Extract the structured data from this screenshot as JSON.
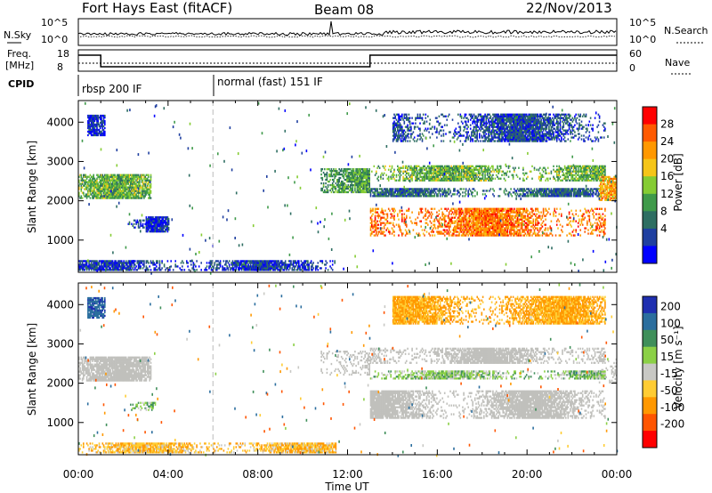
{
  "header": {
    "station": "Fort Hays East (fitACF)",
    "beam": "Beam 08",
    "date": "22/Nov/2013"
  },
  "strip_labels": {
    "nsky": "N.Sky",
    "nsearch": "N.Search",
    "freq_line1": "Freq.",
    "freq_line2": "[MHz]",
    "nave": "Nave",
    "cpid": "CPID"
  },
  "noise_ticks": {
    "top": "10^5",
    "bottom": "10^0"
  },
  "freq_ticks": [
    "18",
    "8"
  ],
  "nave_ticks": [
    "60",
    "0"
  ],
  "cpid_modes": [
    {
      "label": "rbsp 200 IF",
      "start_hour": 0
    },
    {
      "label": "normal (fast) 151 IF",
      "start_hour": 6
    }
  ],
  "colors": {
    "power": [
      "#0000ff",
      "#1f3fa0",
      "#2e6e62",
      "#3f9a4a",
      "#85cc33",
      "#f5c518",
      "#ff9800",
      "#ff5a00",
      "#ff0000"
    ],
    "velocity": [
      "#1f2fb0",
      "#2b6e9e",
      "#3f8f5a",
      "#8bd046",
      "#c8c8c4",
      "#ffcc33",
      "#ff9800",
      "#ff5500",
      "#ff0000"
    ],
    "ground_scatter": "#c0c0bc"
  },
  "chart_data": [
    {
      "type": "heatmap",
      "panel": "power",
      "xlabel": "Time UT",
      "ylabel": "Slant Range [km]",
      "x_ticks": [
        "00:00",
        "04:00",
        "08:00",
        "12:00",
        "16:00",
        "20:00",
        "00:00"
      ],
      "y_ticks": [
        1000,
        2000,
        3000,
        4000
      ],
      "xlim": [
        0,
        24
      ],
      "ylim": [
        180,
        4550
      ],
      "colorbar": {
        "label": "Power [dB]",
        "ticks": [
          4,
          8,
          12,
          16,
          20,
          24,
          28
        ],
        "range": [
          0,
          32
        ]
      },
      "regions": [
        {
          "t": [
            0.0,
            3.2
          ],
          "r": [
            2050,
            2650
          ],
          "level": 14
        },
        {
          "t": [
            0.4,
            1.2
          ],
          "r": [
            3650,
            4150
          ],
          "level": 4
        },
        {
          "t": [
            2.2,
            3.4
          ],
          "r": [
            1300,
            1500
          ],
          "level": 6
        },
        {
          "t": [
            3.0,
            4.0
          ],
          "r": [
            1200,
            1600
          ],
          "level": 4
        },
        {
          "t": [
            0.0,
            11.5
          ],
          "r": [
            220,
            480
          ],
          "level": 5
        },
        {
          "t": [
            10.8,
            13.0
          ],
          "r": [
            2200,
            2800
          ],
          "level": 12
        },
        {
          "t": [
            13.0,
            23.5
          ],
          "r": [
            1100,
            1800
          ],
          "level": 25
        },
        {
          "t": [
            13.0,
            23.5
          ],
          "r": [
            2500,
            2900
          ],
          "level": 14
        },
        {
          "t": [
            13.0,
            23.5
          ],
          "r": [
            2100,
            2300
          ],
          "level": 8
        },
        {
          "t": [
            14.0,
            23.5
          ],
          "r": [
            3500,
            4200
          ],
          "level": 6
        },
        {
          "t": [
            23.2,
            24.0
          ],
          "r": [
            2000,
            2600
          ],
          "level": 22
        }
      ]
    },
    {
      "type": "heatmap",
      "panel": "velocity",
      "xlabel": "Time UT",
      "ylabel": "Slant Range [km]",
      "x_ticks": [
        "00:00",
        "04:00",
        "08:00",
        "12:00",
        "16:00",
        "20:00",
        "00:00"
      ],
      "y_ticks": [
        1000,
        2000,
        3000,
        4000
      ],
      "xlim": [
        0,
        24
      ],
      "ylim": [
        180,
        4550
      ],
      "colorbar": {
        "label": "Velocity [m s⁻¹]",
        "ticks": [
          200,
          100,
          50,
          15,
          -15,
          -50,
          -100,
          -200
        ],
        "range": [
          -250,
          250
        ]
      },
      "regions": [
        {
          "t": [
            0.0,
            3.2
          ],
          "r": [
            2050,
            2650
          ],
          "gs": true
        },
        {
          "t": [
            0.4,
            1.2
          ],
          "r": [
            3650,
            4150
          ],
          "vel": 180
        },
        {
          "t": [
            2.2,
            3.4
          ],
          "r": [
            1300,
            1500
          ],
          "vel": 40
        },
        {
          "t": [
            0.0,
            11.5
          ],
          "r": [
            220,
            480
          ],
          "vel": -40
        },
        {
          "t": [
            10.8,
            13.0
          ],
          "r": [
            2200,
            2800
          ],
          "gs": true
        },
        {
          "t": [
            13.0,
            23.5
          ],
          "r": [
            1100,
            1800
          ],
          "gs": true
        },
        {
          "t": [
            13.0,
            23.5
          ],
          "r": [
            2500,
            2900
          ],
          "gs": true
        },
        {
          "t": [
            13.0,
            23.5
          ],
          "r": [
            2100,
            2300
          ],
          "vel": 30
        },
        {
          "t": [
            14.0,
            23.5
          ],
          "r": [
            3500,
            4200
          ],
          "vel": -60
        },
        {
          "t": [
            23.2,
            24.0
          ],
          "r": [
            2000,
            2600
          ],
          "gs": true
        }
      ]
    }
  ]
}
